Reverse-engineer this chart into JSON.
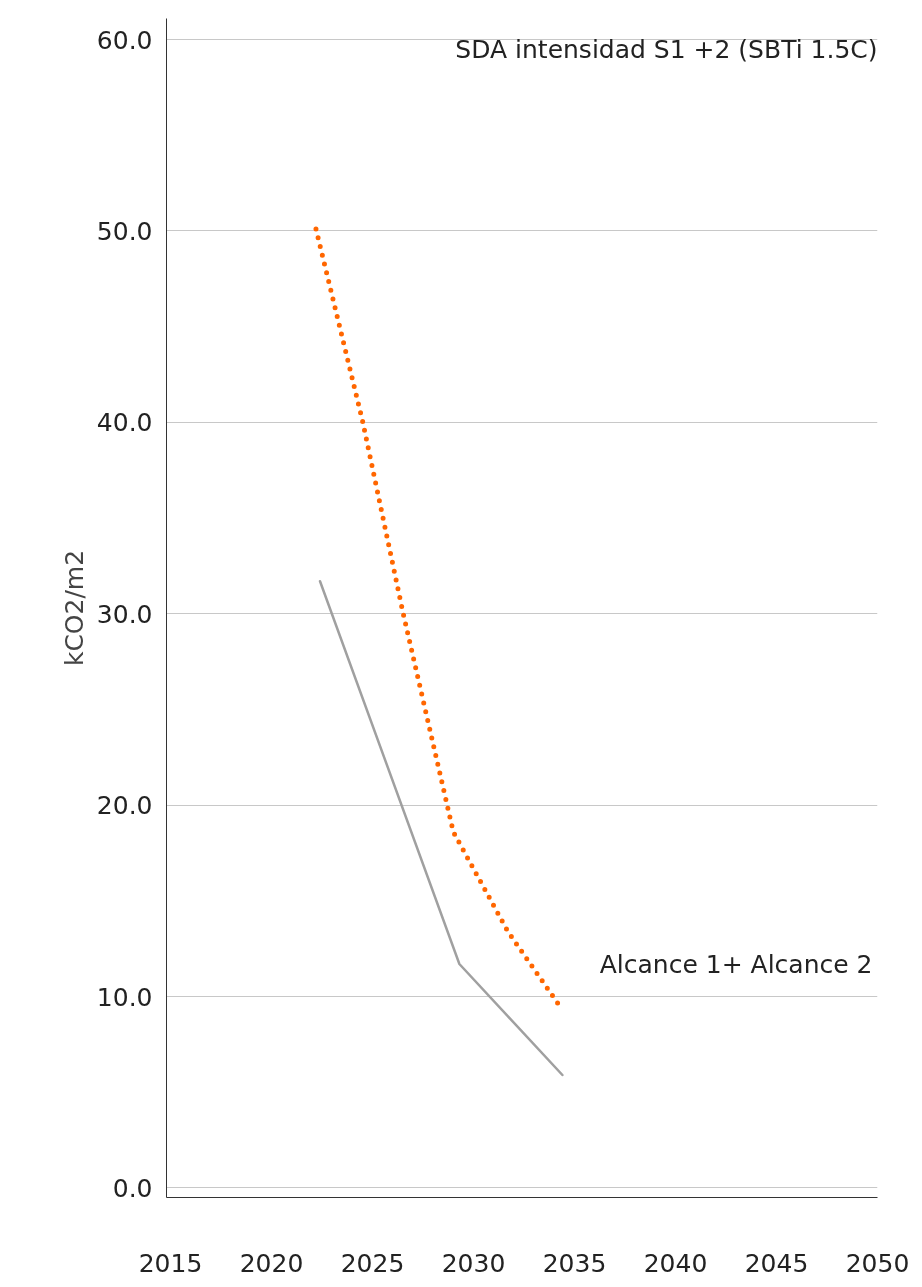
{
  "chart_data": {
    "type": "line",
    "ylabel": "kCO2/m2",
    "xlim": [
      2014.8,
      2050
    ],
    "xticks": [
      2015,
      2020,
      2025,
      2030,
      2035,
      2040,
      2045,
      2050
    ],
    "ylim": [
      -0.5,
      61.1
    ],
    "yticks": [
      {
        "value": 0,
        "label": "0.0"
      },
      {
        "value": 10,
        "label": "10.0"
      },
      {
        "value": 20,
        "label": "20.0"
      },
      {
        "value": 30,
        "label": "30.0"
      },
      {
        "value": 40,
        "label": "40.0"
      },
      {
        "value": 50,
        "label": "50.0"
      },
      {
        "value": 60,
        "label": "60.0"
      }
    ],
    "grid": "y",
    "series": [
      {
        "color": "#ff6600",
        "line_style": "dotted",
        "x": [
          2022.2,
          2024.5,
          2026.5,
          2029.0,
          2031.7,
          2034.4
        ],
        "values": [
          50.1,
          40.1,
          30.1,
          18.6,
          13.4,
          9.3
        ]
      },
      {
        "color": "#a0a0a0",
        "line_style": "solid",
        "x": [
          2022.4,
          2029.3,
          2034.4
        ],
        "values": [
          31.7,
          11.7,
          5.9
        ]
      }
    ],
    "annotations": [
      "SDA intensidad S1 +2 (SBTi 1.5C)",
      "Alcance 1+ Alcance 2"
    ]
  }
}
